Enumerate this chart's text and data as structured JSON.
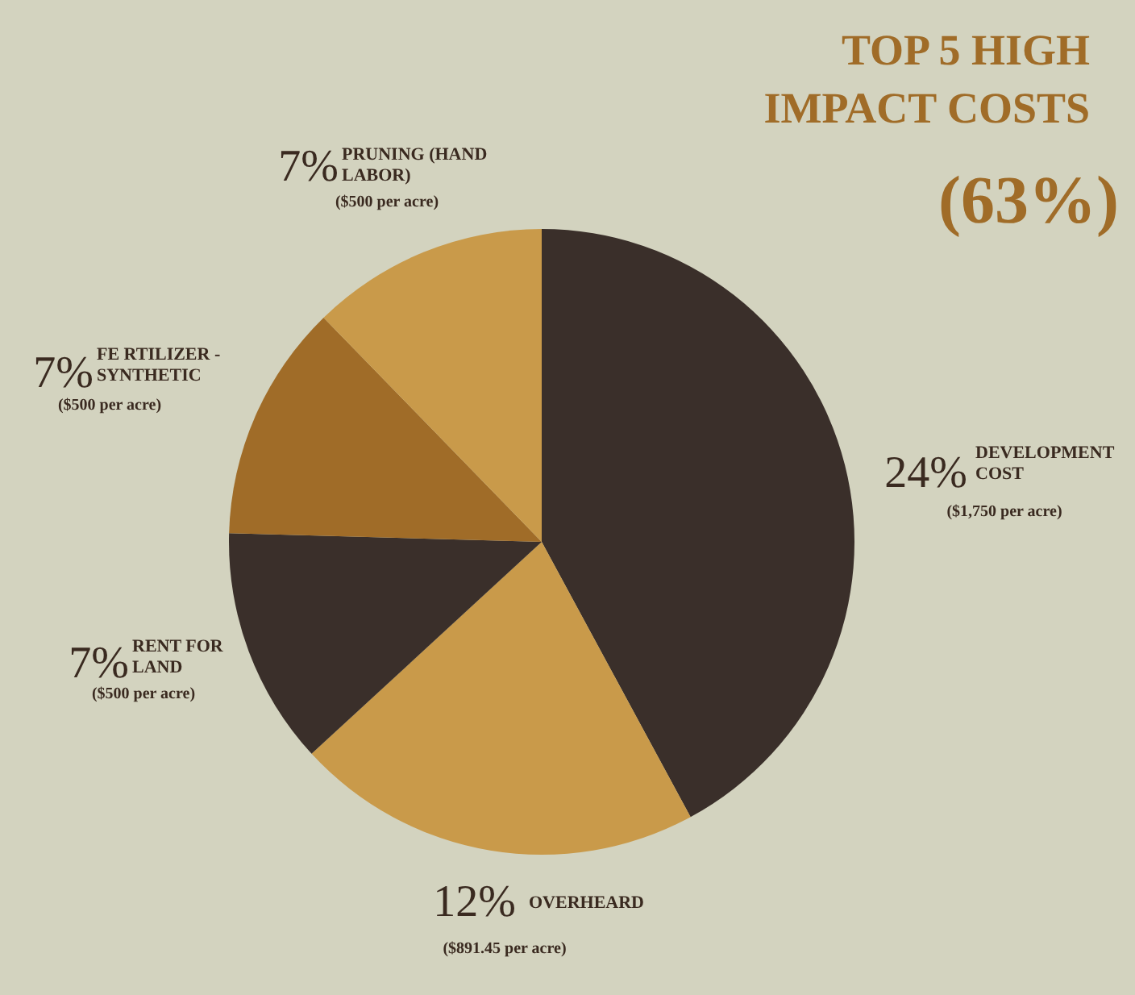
{
  "chart_data": {
    "type": "pie",
    "title": "TOP 5 HIGH\nIMPACT COSTS",
    "subtitle": "(63%)",
    "categories": [
      "DEVELOPMENT\nCOST",
      "OVERHEARD",
      "RENT FOR\nLAND",
      "FE RTILIZER -\nSYNTHETIC",
      "PRUNING (HAND\nLABOR)"
    ],
    "values": [
      24,
      12,
      7,
      7,
      7
    ],
    "value_labels": [
      "24%",
      "12%",
      "7%",
      "7%",
      "7%"
    ],
    "colors": [
      "#3a2f2a",
      "#c99a4a",
      "#3a2f2a",
      "#a06c28",
      "#c99a4a"
    ],
    "annotations": [
      "($1,750 per acre)",
      "($891.45 per acre)",
      "($500 per acre)",
      "($500 per acre)",
      "($500 per acre)"
    ]
  }
}
